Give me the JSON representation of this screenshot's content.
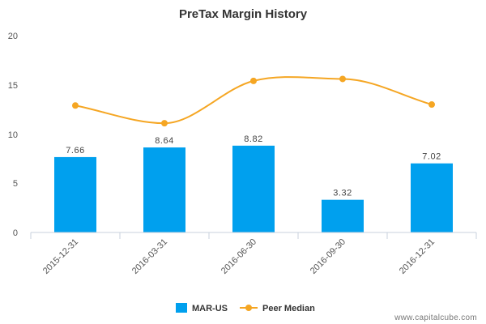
{
  "chart_data": {
    "type": "bar",
    "title": "PreTax Margin History",
    "categories": [
      "2015-12-31",
      "2016-03-31",
      "2016-06-30",
      "2016-09-30",
      "2016-12-31"
    ],
    "series": [
      {
        "name": "MAR-US",
        "kind": "bar",
        "values": [
          7.66,
          8.64,
          8.82,
          3.32,
          7.02
        ],
        "labels": [
          "7.66",
          "8.64",
          "8.82",
          "3.32",
          "7.02"
        ],
        "color": "#00a0ee"
      },
      {
        "name": "Peer Median",
        "kind": "line",
        "values": [
          12.9,
          11.1,
          15.4,
          15.6,
          13.0
        ],
        "color": "#f5a623"
      }
    ],
    "yticks": [
      "0",
      "5",
      "10",
      "15",
      "20"
    ],
    "ylim": [
      0,
      20
    ],
    "grid": false,
    "legend": "bottom-center"
  },
  "credit": "www.capitalcube.com"
}
